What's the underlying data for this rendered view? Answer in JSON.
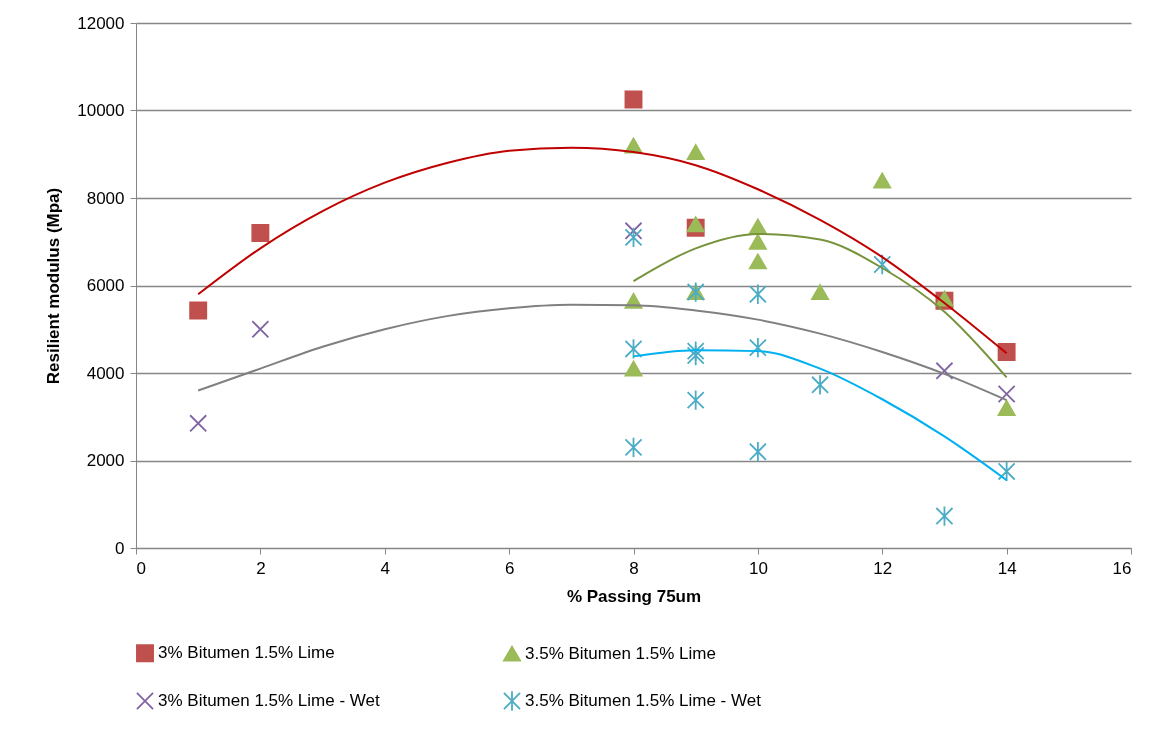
{
  "chart_data": {
    "type": "scatter",
    "xlabel": "% Passing 75um",
    "ylabel": "Resilient modulus (Mpa)",
    "xlim": [
      0,
      16
    ],
    "xticks": [
      0,
      2,
      4,
      6,
      8,
      10,
      12,
      14,
      16
    ],
    "ylim": [
      0,
      12000
    ],
    "yticks": [
      0,
      2000,
      4000,
      6000,
      8000,
      10000,
      12000
    ],
    "grid": "y",
    "legend": "bottom",
    "series": [
      {
        "name": "3% Bitumen 1.5% Lime",
        "color": "#c0504d",
        "marker": "square",
        "x": [
          1,
          2,
          8,
          9,
          13,
          14
        ],
        "values": [
          5430,
          7200,
          10250,
          7320,
          5650,
          4480
        ]
      },
      {
        "name": "3.5% Bitumen 1.5% Lime",
        "color": "#9bbb59",
        "marker": "triangle",
        "x": [
          8,
          8,
          8,
          9,
          9,
          9,
          10,
          10,
          10,
          11,
          12,
          13,
          14
        ],
        "values": [
          9200,
          5650,
          4100,
          9050,
          7400,
          5850,
          7350,
          7000,
          6550,
          5850,
          8400,
          5700,
          3200
        ]
      },
      {
        "name": "3% Bitumen 1.5% Lime - Wet",
        "color": "#8064a2",
        "marker": "cross",
        "x": [
          1,
          2,
          8,
          13,
          14
        ],
        "values": [
          2850,
          5000,
          7250,
          4050,
          3520
        ]
      },
      {
        "name": "3.5% Bitumen 1.5% Lime - Wet",
        "color": "#4bacc6",
        "marker": "cross",
        "x": [
          8,
          8,
          8,
          9,
          9,
          9,
          9,
          10,
          10,
          10,
          11,
          12,
          13,
          14
        ],
        "values": [
          7100,
          4550,
          2300,
          5850,
          4500,
          4400,
          3380,
          5800,
          4580,
          2200,
          3730,
          6480,
          730,
          1750
        ]
      },
      {
        "type": "line",
        "color": "#c00000",
        "marker": "none",
        "x": [
          1,
          2,
          3,
          4,
          5,
          6,
          7,
          8,
          9,
          10,
          11,
          12,
          13,
          14
        ],
        "values": [
          5800,
          6850,
          7700,
          8350,
          8800,
          9080,
          9150,
          9050,
          8750,
          8200,
          7500,
          6650,
          5600,
          4450
        ]
      },
      {
        "type": "line",
        "color": "#77933c",
        "marker": "none",
        "x": [
          8,
          9,
          10,
          11,
          12,
          13,
          14
        ],
        "values": [
          6100,
          6850,
          7180,
          7050,
          6400,
          5400,
          3900
        ]
      },
      {
        "type": "line",
        "color": "#808080",
        "marker": "none",
        "x": [
          1,
          2,
          3,
          4,
          5,
          6,
          7,
          8,
          9,
          10,
          11,
          12,
          13,
          14
        ],
        "values": [
          3600,
          4100,
          4600,
          5000,
          5300,
          5480,
          5560,
          5550,
          5430,
          5220,
          4900,
          4480,
          3980,
          3380
        ]
      },
      {
        "type": "line",
        "color": "#00b0f0",
        "marker": "none",
        "x": [
          8,
          9,
          10,
          11,
          12,
          13,
          14
        ],
        "values": [
          4380,
          4520,
          4500,
          4100,
          3400,
          2550,
          1550
        ]
      }
    ]
  }
}
